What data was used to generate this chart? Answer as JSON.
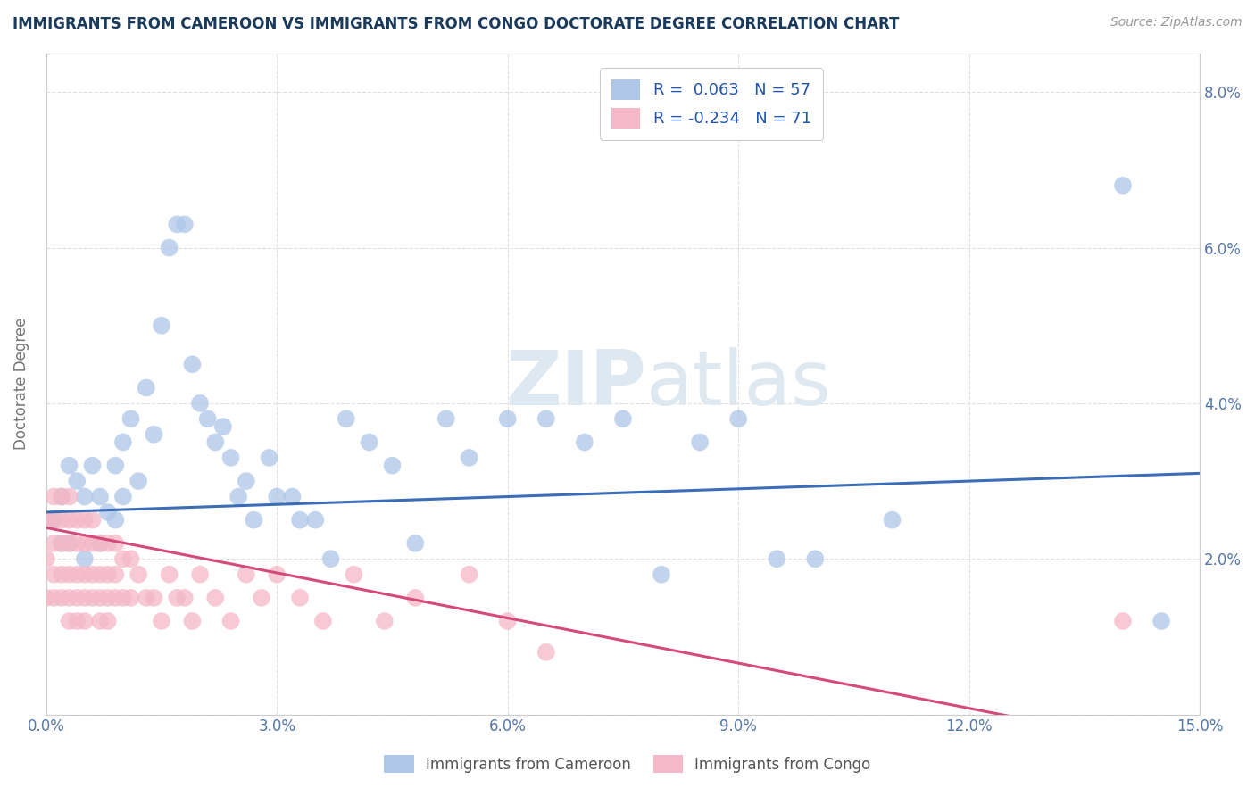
{
  "title": "IMMIGRANTS FROM CAMEROON VS IMMIGRANTS FROM CONGO DOCTORATE DEGREE CORRELATION CHART",
  "source": "Source: ZipAtlas.com",
  "ylabel": "Doctorate Degree",
  "xlim": [
    0.0,
    0.15
  ],
  "ylim": [
    0.0,
    0.085
  ],
  "xticks": [
    0.0,
    0.03,
    0.06,
    0.09,
    0.12,
    0.15
  ],
  "xtick_labels": [
    "0.0%",
    "3.0%",
    "6.0%",
    "9.0%",
    "12.0%",
    "15.0%"
  ],
  "yticks": [
    0.0,
    0.02,
    0.04,
    0.06,
    0.08
  ],
  "ytick_labels": [
    "",
    "2.0%",
    "4.0%",
    "6.0%",
    "8.0%"
  ],
  "cameroon_R": 0.063,
  "cameroon_N": 57,
  "congo_R": -0.234,
  "congo_N": 71,
  "blue_color": "#aec6e8",
  "pink_color": "#f4b8c8",
  "blue_line_color": "#3a6db5",
  "pink_line_color": "#d44a7a",
  "title_color": "#1a3a5c",
  "axis_label_color": "#777777",
  "tick_color": "#5577aa",
  "grid_color": "#dddddd",
  "background_color": "#ffffff",
  "watermark_color": "#dde8f0",
  "cameroon_x": [
    0.001,
    0.002,
    0.002,
    0.003,
    0.003,
    0.004,
    0.005,
    0.005,
    0.006,
    0.007,
    0.007,
    0.008,
    0.009,
    0.009,
    0.01,
    0.01,
    0.011,
    0.012,
    0.013,
    0.014,
    0.015,
    0.016,
    0.017,
    0.018,
    0.019,
    0.02,
    0.021,
    0.022,
    0.023,
    0.024,
    0.025,
    0.026,
    0.027,
    0.029,
    0.03,
    0.032,
    0.033,
    0.035,
    0.037,
    0.039,
    0.042,
    0.045,
    0.048,
    0.052,
    0.055,
    0.06,
    0.065,
    0.07,
    0.075,
    0.08,
    0.085,
    0.09,
    0.095,
    0.1,
    0.11,
    0.14,
    0.145
  ],
  "cameroon_y": [
    0.025,
    0.028,
    0.022,
    0.032,
    0.022,
    0.03,
    0.028,
    0.02,
    0.032,
    0.028,
    0.022,
    0.026,
    0.032,
    0.025,
    0.035,
    0.028,
    0.038,
    0.03,
    0.042,
    0.036,
    0.05,
    0.06,
    0.063,
    0.063,
    0.045,
    0.04,
    0.038,
    0.035,
    0.037,
    0.033,
    0.028,
    0.03,
    0.025,
    0.033,
    0.028,
    0.028,
    0.025,
    0.025,
    0.02,
    0.038,
    0.035,
    0.032,
    0.022,
    0.038,
    0.033,
    0.038,
    0.038,
    0.035,
    0.038,
    0.018,
    0.035,
    0.038,
    0.02,
    0.02,
    0.025,
    0.068,
    0.012
  ],
  "congo_x": [
    0.0,
    0.0,
    0.0,
    0.001,
    0.001,
    0.001,
    0.001,
    0.001,
    0.002,
    0.002,
    0.002,
    0.002,
    0.002,
    0.003,
    0.003,
    0.003,
    0.003,
    0.003,
    0.003,
    0.004,
    0.004,
    0.004,
    0.004,
    0.004,
    0.005,
    0.005,
    0.005,
    0.005,
    0.005,
    0.006,
    0.006,
    0.006,
    0.006,
    0.007,
    0.007,
    0.007,
    0.007,
    0.008,
    0.008,
    0.008,
    0.008,
    0.009,
    0.009,
    0.009,
    0.01,
    0.01,
    0.011,
    0.011,
    0.012,
    0.013,
    0.014,
    0.015,
    0.016,
    0.017,
    0.018,
    0.019,
    0.02,
    0.022,
    0.024,
    0.026,
    0.028,
    0.03,
    0.033,
    0.036,
    0.04,
    0.044,
    0.048,
    0.055,
    0.06,
    0.065,
    0.14
  ],
  "congo_y": [
    0.025,
    0.02,
    0.015,
    0.028,
    0.025,
    0.022,
    0.018,
    0.015,
    0.028,
    0.025,
    0.022,
    0.018,
    0.015,
    0.028,
    0.025,
    0.022,
    0.018,
    0.015,
    0.012,
    0.025,
    0.022,
    0.018,
    0.015,
    0.012,
    0.025,
    0.022,
    0.018,
    0.015,
    0.012,
    0.025,
    0.022,
    0.018,
    0.015,
    0.022,
    0.018,
    0.015,
    0.012,
    0.022,
    0.018,
    0.015,
    0.012,
    0.022,
    0.018,
    0.015,
    0.02,
    0.015,
    0.02,
    0.015,
    0.018,
    0.015,
    0.015,
    0.012,
    0.018,
    0.015,
    0.015,
    0.012,
    0.018,
    0.015,
    0.012,
    0.018,
    0.015,
    0.018,
    0.015,
    0.012,
    0.018,
    0.012,
    0.015,
    0.018,
    0.012,
    0.008,
    0.012
  ]
}
